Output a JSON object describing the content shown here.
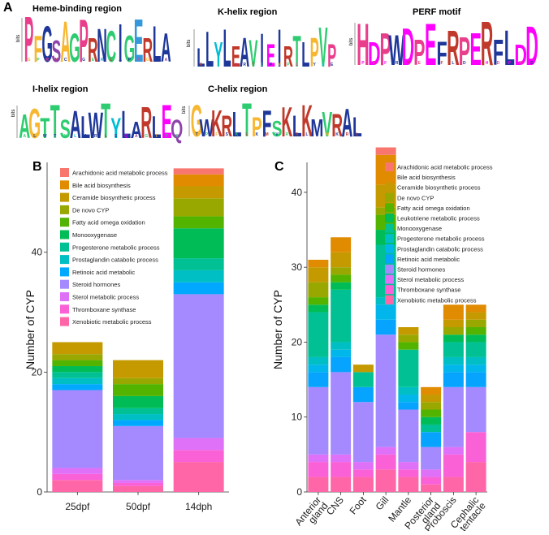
{
  "panels": {
    "a": "A",
    "b": "B",
    "c": "C"
  },
  "sequence_logos": {
    "y_axis_label": "bits",
    "items": [
      {
        "title": "Heme-binding region",
        "letters": "PFGSAGPRNCIGERLA",
        "colors": [
          "#e83e8c",
          "#f7b731",
          "#1e3799",
          "#8e44ad",
          "#f7b731",
          "#2ecc71",
          "#e83e8c",
          "#c0392b",
          "#1e3799",
          "#2ecc71",
          "#1e3799",
          "#2ecc71",
          "#3498db",
          "#c0392b",
          "#1e3799",
          "#1e3799"
        ]
      },
      {
        "title": "K-helix region",
        "letters": "LLYLEAVIEIRTLPVP",
        "colors": [
          "#1e3799",
          "#1e3799",
          "#00bcd4",
          "#1e3799",
          "#c0392b",
          "#1e3799",
          "#2ecc71",
          "#1e3799",
          "#ff00ff",
          "#1e3799",
          "#c0392b",
          "#2ecc71",
          "#1e3799",
          "#f7b731",
          "#2ecc71",
          "#e83e8c"
        ]
      },
      {
        "title": "PERF motif",
        "letters": "HDPWDPEFRPERFLDD",
        "colors": [
          "#e83e8c",
          "#ff00ff",
          "#e83e8c",
          "#1e3799",
          "#ff00ff",
          "#e83e8c",
          "#ff00ff",
          "#1e3799",
          "#c0392b",
          "#e83e8c",
          "#ff00ff",
          "#c0392b",
          "#1e3799",
          "#1e3799",
          "#ff00ff",
          "#ff00ff"
        ]
      },
      {
        "title": "I-helix region",
        "letters": "AGTTSALWTYLARLEQ",
        "colors": [
          "#2ecc71",
          "#f7b731",
          "#2ecc71",
          "#2ecc71",
          "#2ecc71",
          "#1e3799",
          "#1e3799",
          "#1e3799",
          "#2ecc71",
          "#00bcd4",
          "#1e3799",
          "#1e3799",
          "#c0392b",
          "#1e3799",
          "#ff00ff",
          "#8e44ad"
        ]
      },
      {
        "title": "C-helix region",
        "letters": "GWKRLTPFSKLKMVRAL",
        "colors": [
          "#f7b731",
          "#1e3799",
          "#c0392b",
          "#c0392b",
          "#1e3799",
          "#2ecc71",
          "#f7b731",
          "#1e3799",
          "#2ecc71",
          "#c0392b",
          "#1e3799",
          "#c0392b",
          "#1e3799",
          "#2ecc71",
          "#c0392b",
          "#1e3799",
          "#1e3799"
        ]
      }
    ]
  },
  "legend_b": [
    {
      "label": "Arachidonic acid  metabolic process",
      "color": "#f8766d"
    },
    {
      "label": "Bile acid biosynthesis",
      "color": "#e08b00"
    },
    {
      "label": "Ceramide biosynthetic process",
      "color": "#c49a00"
    },
    {
      "label": "De novo CYP",
      "color": "#99a800"
    },
    {
      "label": "Fatty acid omega   oxidation",
      "color": "#53b400"
    },
    {
      "label": "Monooxygenase",
      "color": "#00bc56"
    },
    {
      "label": "Progesterone metabolic process",
      "color": "#00c094"
    },
    {
      "label": "Prostaglandin catabolic process",
      "color": "#00bfc4"
    },
    {
      "label": "Retinoic acid metabolic",
      "color": "#00a9ff"
    },
    {
      "label": "Steroid hormones",
      "color": "#a58aff"
    },
    {
      "label": "Sterol metabolic process",
      "color": "#df70f8"
    },
    {
      "label": "Thromboxane synthase",
      "color": "#fb61d7"
    },
    {
      "label": "Xenobiotic metabolic process",
      "color": "#ff66a8"
    }
  ],
  "legend_c": [
    {
      "label": "Arachidonic acid  metabolic process",
      "color": "#f8766d"
    },
    {
      "label": "Bile acid biosynthesis",
      "color": "#e08b00"
    },
    {
      "label": "Ceramide biosynthetic process",
      "color": "#c49a00"
    },
    {
      "label": "De novo CYP",
      "color": "#99a800"
    },
    {
      "label": "Fatty acid omega   oxidation",
      "color": "#53b400"
    },
    {
      "label": "Leukotriene metabolic process",
      "color": "#00bc56"
    },
    {
      "label": "Monooxygenase",
      "color": "#00c094"
    },
    {
      "label": "Progesterone metabolic process",
      "color": "#00bfc4"
    },
    {
      "label": "Prostaglandin catabolic process",
      "color": "#00b6eb"
    },
    {
      "label": "Retinoic acid metabolic",
      "color": "#06a4ff"
    },
    {
      "label": "Steroid hormones",
      "color": "#a58aff"
    },
    {
      "label": "Sterol metabolic process",
      "color": "#df70f8"
    },
    {
      "label": "Thromboxane synthase",
      "color": "#fb61d7"
    },
    {
      "label": "Xenobiotic metabolic process",
      "color": "#ff66a8"
    }
  ],
  "chart_data": [
    {
      "type": "bar",
      "stacked": true,
      "ylabel": "Number of CYP",
      "ylim": [
        0,
        55
      ],
      "yticks": [
        0,
        20,
        40
      ],
      "categories": [
        "25dpf",
        "50dpf",
        "14dph"
      ],
      "series": [
        {
          "name": "Xenobiotic metabolic process",
          "values": [
            2,
            1,
            5
          ]
        },
        {
          "name": "Thromboxane synthase",
          "values": [
            1,
            0.5,
            2
          ]
        },
        {
          "name": "Sterol metabolic process",
          "values": [
            1,
            0.5,
            2
          ]
        },
        {
          "name": "Steroid hormones",
          "values": [
            13,
            9,
            24
          ]
        },
        {
          "name": "Retinoic acid metabolic",
          "values": [
            1,
            1,
            2
          ]
        },
        {
          "name": "Prostaglandin catabolic process",
          "values": [
            1,
            1,
            2
          ]
        },
        {
          "name": "Progesterone metabolic process",
          "values": [
            1,
            1,
            2
          ]
        },
        {
          "name": "Monooxygenase",
          "values": [
            1,
            2,
            5
          ]
        },
        {
          "name": "Fatty acid omega   oxidation",
          "values": [
            1,
            2,
            2
          ]
        },
        {
          "name": "De novo CYP",
          "values": [
            1,
            1,
            3
          ]
        },
        {
          "name": "Ceramide biosynthetic process",
          "values": [
            2,
            3,
            2
          ]
        },
        {
          "name": "Bile acid biosynthesis",
          "values": [
            0,
            0,
            2
          ]
        },
        {
          "name": "Arachidonic acid  metabolic process",
          "values": [
            0,
            0,
            1
          ]
        }
      ]
    },
    {
      "type": "bar",
      "stacked": true,
      "ylabel": "Number of CYP",
      "ylim": [
        0,
        44
      ],
      "yticks": [
        0,
        10,
        20,
        30,
        40
      ],
      "categories": [
        "Anterior gland",
        "CNS",
        "Foot",
        "Gill",
        "Mantle",
        "Posterior gland",
        "Proboscis",
        "Cephalic tentacle"
      ],
      "series": [
        {
          "name": "Xenobiotic metabolic process",
          "values": [
            2,
            2,
            2,
            3,
            2,
            1,
            2,
            4
          ]
        },
        {
          "name": "Thromboxane synthase",
          "values": [
            2,
            2,
            1,
            2,
            1,
            1,
            3,
            4
          ]
        },
        {
          "name": "Sterol metabolic process",
          "values": [
            1,
            1,
            1,
            1,
            1,
            1,
            1,
            0
          ]
        },
        {
          "name": "Steroid hormones",
          "values": [
            9,
            11,
            8,
            15,
            7,
            3,
            8,
            6
          ]
        },
        {
          "name": "Retinoic acid metabolic",
          "values": [
            2,
            2,
            2,
            2,
            1,
            2,
            2,
            2
          ]
        },
        {
          "name": "Prostaglandin catabolic process",
          "values": [
            1,
            1,
            0,
            2,
            1,
            0,
            1,
            1
          ]
        },
        {
          "name": "Progesterone metabolic process",
          "values": [
            1,
            1,
            0,
            1,
            1,
            0,
            1,
            1
          ]
        },
        {
          "name": "Monooxygenase",
          "values": [
            6,
            7,
            2,
            7,
            5,
            1,
            2,
            2
          ]
        },
        {
          "name": "Leukotriene metabolic process",
          "values": [
            1,
            1,
            0,
            2,
            0,
            1,
            1,
            1
          ]
        },
        {
          "name": "Fatty acid omega   oxidation",
          "values": [
            1,
            1,
            0,
            2,
            1,
            1,
            0,
            1
          ]
        },
        {
          "name": "De novo CYP",
          "values": [
            2,
            1,
            0,
            1,
            1,
            1,
            1,
            1
          ]
        },
        {
          "name": "Ceramide biosynthetic process",
          "values": [
            2,
            2,
            1,
            3,
            1,
            1,
            1,
            1
          ]
        },
        {
          "name": "Bile acid biosynthesis",
          "values": [
            1,
            2,
            0,
            4,
            0,
            1,
            2,
            1
          ]
        },
        {
          "name": "Arachidonic acid  metabolic process",
          "values": [
            0,
            0,
            0,
            1,
            0,
            0,
            0,
            0
          ]
        }
      ]
    }
  ]
}
